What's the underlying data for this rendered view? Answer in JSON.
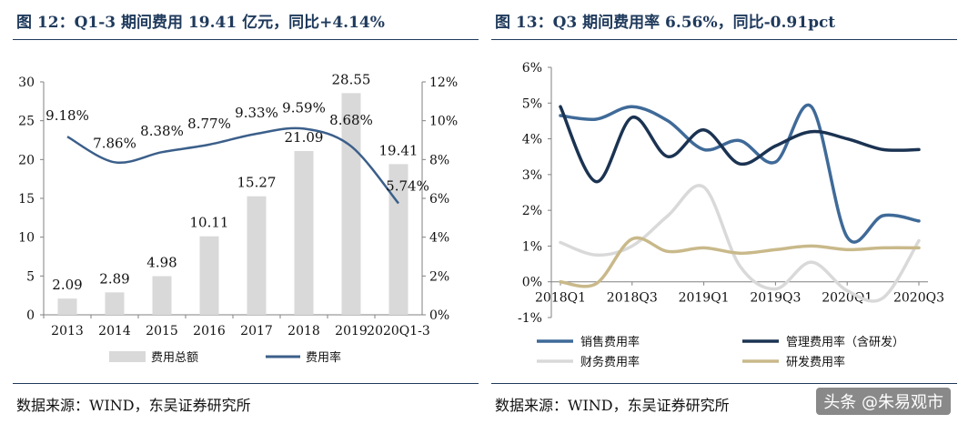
{
  "watermark": "头条 @朱易观市",
  "chart_data": [
    {
      "type": "bar",
      "title": "图 12：Q1-3 期间费用 19.41 亿元，同比+4.14%",
      "source": "数据来源：WIND，东吴证券研究所",
      "categories": [
        "2013",
        "2014",
        "2015",
        "2016",
        "2017",
        "2018",
        "2019",
        "2020Q1-3"
      ],
      "y_left": {
        "ticks": [
          "0",
          "5",
          "10",
          "15",
          "20",
          "25",
          "30"
        ],
        "range": [
          0,
          30
        ]
      },
      "y_right": {
        "ticks": [
          "0%",
          "2%",
          "4%",
          "6%",
          "8%",
          "10%",
          "12%"
        ],
        "range": [
          0,
          12
        ]
      },
      "series": [
        {
          "name": "费用总额",
          "kind": "bar",
          "axis": "left",
          "color": "#d9d9d9",
          "values": [
            2.09,
            2.89,
            4.98,
            10.11,
            15.27,
            21.09,
            28.55,
            19.41
          ],
          "labels": [
            "2.09",
            "2.89",
            "4.98",
            "10.11",
            "15.27",
            "21.09",
            "28.55",
            "19.41"
          ]
        },
        {
          "name": "费用率",
          "kind": "line",
          "axis": "right",
          "color": "#3b5f8a",
          "values": [
            9.18,
            7.86,
            8.38,
            8.77,
            9.33,
            9.59,
            8.68,
            5.74
          ],
          "labels": [
            "9.18%",
            "7.86%",
            "8.38%",
            "8.77%",
            "9.33%",
            "9.59%",
            "8.68%",
            "5.74%"
          ]
        }
      ],
      "legend": "bottom"
    },
    {
      "type": "line",
      "title": "图 13：Q3 期间费用率 6.56%，同比-0.91pct",
      "source": "数据来源：WIND，东吴证券研究所",
      "x": [
        "2018Q1",
        "2018Q2",
        "2018Q3",
        "2018Q4",
        "2019Q1",
        "2019Q2",
        "2019Q3",
        "2019Q4",
        "2020Q1",
        "2020Q2",
        "2020Q3"
      ],
      "x_tick_labels": [
        "2018Q1",
        "2018Q3",
        "2019Q1",
        "2019Q3",
        "2020Q1",
        "2020Q3"
      ],
      "y": {
        "ticks": [
          "-1%",
          "0%",
          "1%",
          "2%",
          "3%",
          "4%",
          "5%",
          "6%"
        ],
        "range": [
          -1,
          6
        ]
      },
      "series": [
        {
          "name": "销售费用率",
          "color": "#3f6a98",
          "values": [
            4.65,
            4.55,
            4.9,
            4.5,
            3.7,
            3.95,
            3.35,
            4.9,
            1.25,
            1.85,
            1.7
          ]
        },
        {
          "name": "管理费用率（含研发）",
          "color": "#1b3352",
          "values": [
            4.9,
            2.8,
            4.6,
            3.5,
            4.25,
            3.3,
            3.8,
            4.2,
            4.0,
            3.7,
            3.7
          ]
        },
        {
          "name": "财务费用率",
          "color": "#d9d9d9",
          "values": [
            1.1,
            0.75,
            1.0,
            1.85,
            2.65,
            0.45,
            -0.2,
            0.55,
            -0.25,
            -0.45,
            1.15
          ]
        },
        {
          "name": "研发费用率",
          "color": "#c9b98a",
          "values": [
            0.0,
            -0.05,
            1.2,
            0.85,
            0.95,
            0.8,
            0.9,
            1.0,
            0.9,
            0.95,
            0.95
          ]
        }
      ],
      "legend": "bottom"
    }
  ]
}
